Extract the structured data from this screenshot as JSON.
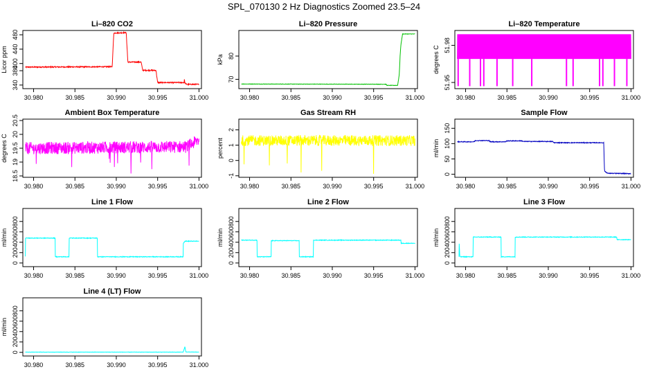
{
  "page": {
    "title": "SPL_070130  2 Hz Diagnostics Zoomed 23.5–24"
  },
  "x_ticks": [
    "30.980",
    "30.985",
    "30.990",
    "30.995",
    "31.000"
  ],
  "chart_data": [
    {
      "type": "line",
      "title": "Li–820 CO2",
      "ylabel": "Licor ppm",
      "color": "#ff0000",
      "xlim": [
        30.9787,
        31.0003
      ],
      "ylim": [
        330,
        492
      ],
      "yticks": [
        340,
        380,
        400,
        440,
        480
      ],
      "noise": 1.5,
      "x": [
        30.979,
        30.9895,
        30.9897,
        30.9912,
        30.9914,
        30.993,
        30.9932,
        30.9948,
        30.995,
        30.9982,
        30.9982,
        30.9983,
        30.9985,
        31.0
      ],
      "y": [
        390,
        391,
        485,
        486,
        404,
        404,
        381,
        381,
        347,
        347,
        360,
        346,
        342,
        342
      ]
    },
    {
      "type": "line",
      "title": "Li–820 Pressure",
      "ylabel": "kPa",
      "color": "#00c000",
      "xlim": [
        30.9787,
        31.0003
      ],
      "ylim": [
        66,
        91
      ],
      "yticks": [
        70,
        80
      ],
      "noise": 0.08,
      "x": [
        30.979,
        30.9965,
        30.9966,
        30.9979,
        30.9981,
        30.9982,
        30.9983,
        30.9985,
        31.0
      ],
      "y": [
        68.0,
        67.9,
        67.4,
        67.4,
        72,
        80,
        85,
        89.5,
        89.5
      ]
    },
    {
      "type": "line",
      "title": "Li–820 Temperature",
      "ylabel": "degrees C",
      "color": "#ff00ff",
      "xlim": [
        30.9787,
        31.0003
      ],
      "ylim": [
        51.945,
        51.992
      ],
      "yticks": [
        51.95,
        51.98
      ],
      "pattern": "toggle",
      "levels": [
        51.969,
        51.989
      ],
      "dips": [
        30.9791,
        30.9805,
        30.9818,
        30.9822,
        30.9838,
        30.9857,
        30.988,
        30.9922,
        30.993,
        30.9962,
        30.9966,
        30.998,
        30.9995
      ],
      "dip_value": 51.947
    },
    {
      "type": "line",
      "title": "Ambient Box Temperature",
      "ylabel": "degrees C",
      "color": "#ff00ff",
      "xlim": [
        30.9787,
        31.0003
      ],
      "ylim": [
        18.45,
        20.55
      ],
      "yticks": [
        18.5,
        19.0,
        19.5,
        20.0,
        20.5
      ],
      "noise": 0.22,
      "x": [
        30.979,
        30.9985,
        31.0
      ],
      "y": [
        19.5,
        19.55,
        19.8
      ]
    },
    {
      "type": "line",
      "title": "Gas Stream RH",
      "ylabel": "percent",
      "color": "#ffff00",
      "xlim": [
        30.9787,
        31.0003
      ],
      "ylim": [
        -1.1,
        2.7
      ],
      "yticks": [
        -1,
        0,
        1,
        2
      ],
      "noise": 0.35,
      "x": [
        30.979,
        31.0
      ],
      "y": [
        1.3,
        1.3
      ]
    },
    {
      "type": "line",
      "title": "Sample Flow",
      "ylabel": "ml/min",
      "color": "#0000c0",
      "xlim": [
        30.9787,
        31.0003
      ],
      "ylim": [
        -10,
        180
      ],
      "yticks": [
        0,
        50,
        100,
        150
      ],
      "noise": 1.2,
      "x": [
        30.979,
        30.981,
        30.9812,
        30.9828,
        30.983,
        30.9848,
        30.985,
        30.9868,
        30.987,
        30.9905,
        30.9907,
        30.9967,
        30.9968,
        30.9972,
        31.0
      ],
      "y": [
        106,
        106,
        110,
        110,
        106,
        106,
        109,
        109,
        107,
        107,
        103,
        103,
        10,
        3,
        2
      ]
    },
    {
      "type": "line",
      "title": "Line 1 Flow",
      "ylabel": "ml/min",
      "color": "#00ffff",
      "xlim": [
        30.9787,
        31.0003
      ],
      "ylim": [
        -70,
        1050
      ],
      "yticks": [
        0,
        200,
        400,
        600,
        800
      ],
      "noise": 6,
      "x": [
        30.979,
        30.979,
        30.9826,
        30.9826,
        30.9843,
        30.9843,
        30.9877,
        30.9877,
        30.9981,
        30.9981,
        30.9983,
        31.0
      ],
      "y": [
        130,
        480,
        480,
        120,
        120,
        480,
        480,
        120,
        120,
        380,
        420,
        420
      ]
    },
    {
      "type": "line",
      "title": "Line 2 Flow",
      "ylabel": "ml/min",
      "color": "#00ffff",
      "xlim": [
        30.9787,
        31.0003
      ],
      "ylim": [
        -70,
        1050
      ],
      "yticks": [
        0,
        200,
        400,
        600,
        800
      ],
      "noise": 6,
      "x": [
        30.979,
        30.9809,
        30.9809,
        30.9826,
        30.9826,
        30.986,
        30.986,
        30.9877,
        30.9877,
        30.9983,
        30.9983,
        31.0
      ],
      "y": [
        440,
        440,
        120,
        120,
        430,
        430,
        120,
        120,
        440,
        440,
        380,
        380
      ]
    },
    {
      "type": "line",
      "title": "Line 3 Flow",
      "ylabel": "ml/min",
      "color": "#00ffff",
      "xlim": [
        30.9787,
        31.0003
      ],
      "ylim": [
        -70,
        1050
      ],
      "yticks": [
        0,
        200,
        400,
        600,
        800
      ],
      "noise": 6,
      "x": [
        30.9792,
        30.9792,
        30.9793,
        30.9809,
        30.9809,
        30.9843,
        30.9843,
        30.986,
        30.986,
        30.9983,
        30.9983,
        31.0
      ],
      "y": [
        120,
        480,
        120,
        120,
        500,
        500,
        120,
        120,
        500,
        500,
        450,
        450
      ]
    },
    {
      "type": "line",
      "title": "Line 4 (LT) Flow",
      "ylabel": "ml/min",
      "color": "#00ffff",
      "xlim": [
        30.9787,
        31.0003
      ],
      "ylim": [
        -70,
        1050
      ],
      "yticks": [
        0,
        200,
        400,
        600,
        800
      ],
      "noise": 3,
      "x": [
        30.979,
        30.9981,
        30.9982,
        30.9983,
        30.9984,
        31.0
      ],
      "y": [
        5,
        5,
        60,
        110,
        8,
        5
      ]
    }
  ]
}
